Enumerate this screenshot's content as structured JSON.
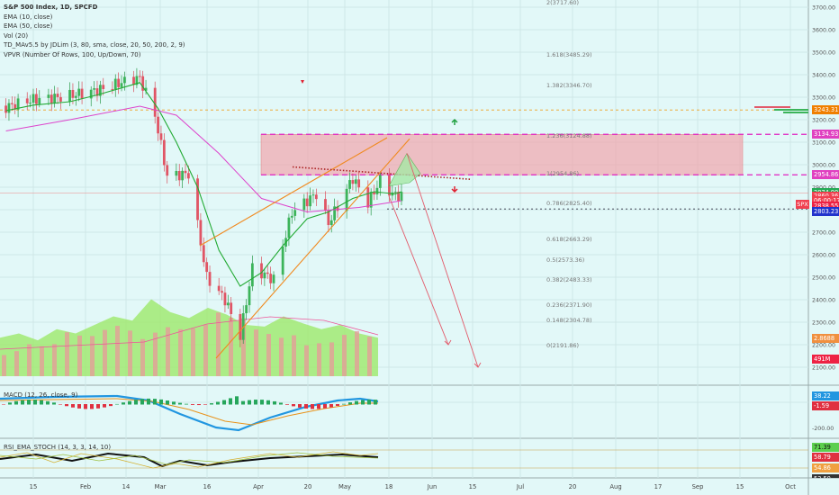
{
  "header": {
    "title": "S&P 500 Index, 1D, SPCFD",
    "indicators": [
      "EMA (10, close)",
      "EMA (50, close)",
      "Vol (20)",
      "TD_MAv5.5 by JDLim (3, 80, sma, close, 20, 50, 200, 2, 9)",
      "VPVR (Number Of Rows, 100, Up/Down, 70)"
    ]
  },
  "macd_panel": {
    "title": "MACD (12, 26, close, 9)",
    "labels": [
      "38.22",
      "-1.59"
    ],
    "ticks": [
      "-200.00"
    ]
  },
  "rsi_panel": {
    "title": "RSI_EMA_STOCH (14, 3, 3, 14, 10)",
    "labels": [
      "71.39",
      "58.79",
      "54.86",
      "53.50"
    ]
  },
  "symbol_tag": "SPX",
  "price_labels": [
    {
      "text": "3243.31",
      "price": 3243.31,
      "color": "#f07f00"
    },
    {
      "text": "3134.93",
      "price": 3134.93,
      "color": "#e040c0"
    },
    {
      "text": "2954.86",
      "price": 2954.86,
      "color": "#e040c0"
    },
    {
      "text": "2874.99",
      "price": 2874.99,
      "color": "#22aa55"
    },
    {
      "text": "2860.36",
      "price": 2860.36,
      "color": "#f04050"
    },
    {
      "text": "06:00:17",
      "price": 2838.5,
      "color": "#f04050"
    },
    {
      "text": "2838.55",
      "price": 2815.5,
      "color": "#ee2244"
    },
    {
      "text": "2803.23",
      "price": 2790.5,
      "color": "#2233cc"
    },
    {
      "text": "2.8688",
      "price": 2228,
      "color": "#f09040"
    },
    {
      "text": "491M",
      "price": 2135,
      "color": "#ee2244"
    }
  ],
  "fib_labels": [
    {
      "text": "2(3717.60)",
      "price": 3717.6
    },
    {
      "text": "1.618(3485.29)",
      "price": 3485.29
    },
    {
      "text": "1.382(3346.70)",
      "price": 3346.7
    },
    {
      "text": "1.236(3124.88)",
      "price": 3124.88
    },
    {
      "text": "1(2954.86)",
      "price": 2954.86
    },
    {
      "text": "0.786(2825.40)",
      "price": 2825.4
    },
    {
      "text": "0.618(2663.29)",
      "price": 2663.29
    },
    {
      "text": "0.5(2573.36)",
      "price": 2573.36
    },
    {
      "text": "0.382(2483.33)",
      "price": 2483.33
    },
    {
      "text": "0.236(2371.90)",
      "price": 2371.9
    },
    {
      "text": "0.148(2304.78)",
      "price": 2304.78
    },
    {
      "text": "0(2191.86)",
      "price": 2191.86
    }
  ],
  "x_axis_labels": [
    "15",
    "Feb",
    "14",
    "Mar",
    "16",
    "Apr",
    "20",
    "May",
    "18",
    "Jun",
    "15",
    "Jul",
    "20",
    "Aug",
    "17",
    "Sep",
    "15",
    "Oct"
  ],
  "chart_data": {
    "type": "line",
    "title": "S&P 500 Index, 1D, SPCFD",
    "y_ticks": [
      3700,
      3600,
      3500,
      3400,
      3300,
      3200,
      3100,
      3000,
      2900,
      2800,
      2700,
      2600,
      2500,
      2400,
      2300,
      2200,
      2100
    ],
    "y_tick_labels": [
      "3700.00",
      "3600.00",
      "3500.00",
      "3400.00",
      "3300.00",
      "3200.00",
      "3100.00",
      "3000.00",
      "2900.00",
      "2800.00",
      "2700.00",
      "2600.00",
      "2500.00",
      "2400.00",
      "2300.00",
      "2200.00",
      "2100.00"
    ],
    "ylim": [
      2050,
      3770
    ],
    "series": [
      {
        "name": "EMA (10, close)",
        "color": "#22aa33",
        "x": [
          "2020-01-06",
          "2020-01-15",
          "2020-01-27",
          "2020-02-05",
          "2020-02-19",
          "2020-02-25",
          "2020-03-02",
          "2020-03-09",
          "2020-03-16",
          "2020-03-23",
          "2020-03-30",
          "2020-04-06",
          "2020-04-14",
          "2020-04-21",
          "2020-04-29",
          "2020-05-06",
          "2020-05-13",
          "2020-05-15"
        ],
        "values": [
          3240,
          3265,
          3280,
          3310,
          3365,
          3250,
          3100,
          2900,
          2620,
          2460,
          2520,
          2640,
          2760,
          2790,
          2850,
          2880,
          2870,
          2880
        ]
      },
      {
        "name": "EMA (50, close)",
        "color": "#dd44cc",
        "x": [
          "2020-01-06",
          "2020-01-27",
          "2020-02-19",
          "2020-03-02",
          "2020-03-16",
          "2020-03-30",
          "2020-04-14",
          "2020-05-01",
          "2020-05-15"
        ],
        "values": [
          3150,
          3200,
          3260,
          3220,
          3050,
          2850,
          2790,
          2810,
          2840
        ]
      }
    ],
    "volume_area": {
      "name": "Vol (20)",
      "values": [
        0.45,
        0.5,
        0.42,
        0.55,
        0.5,
        0.6,
        0.7,
        0.65,
        0.9,
        0.75,
        0.68,
        0.8,
        0.72,
        0.6,
        0.58,
        0.7,
        0.62,
        0.55,
        0.6,
        0.5,
        0.45
      ]
    },
    "annotations": {
      "resistance_zone": [
        2954.86,
        3134.93
      ],
      "projection_targets": [
        2191.86,
        2100
      ]
    }
  }
}
